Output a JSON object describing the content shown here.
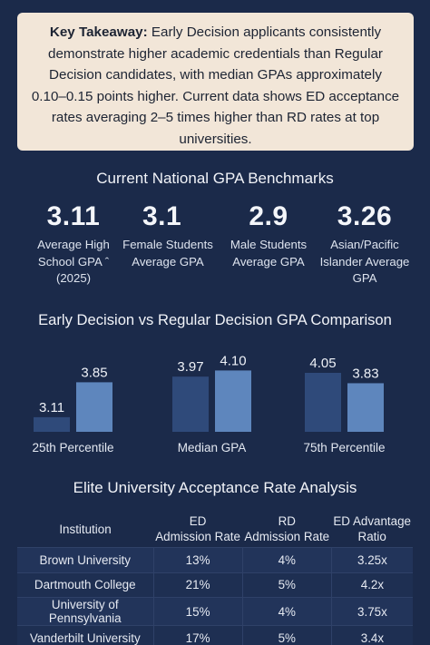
{
  "takeaway": {
    "label": "Key Takeaway:",
    "text": "Early Decision applicants consistently demonstrate higher academic credentials than Regular Decision candidates, with median GPAs approximately 0.10–0.15 points higher. Current data shows ED acceptance rates averaging 2–5 times higher than RD rates at top universities."
  },
  "benchmarks": {
    "title": "Current National GPA Benchmarks",
    "stats": [
      {
        "value": "3.11",
        "label": "Average High School GPA ˆ (2025)"
      },
      {
        "value": "3.1",
        "label": "Female Students Average GPA"
      },
      {
        "value": "2.9",
        "label": "Male Students Average GPA"
      },
      {
        "value": "3.26",
        "label": "Asian/Pacific Islander Average GPA"
      }
    ]
  },
  "comparison": {
    "title": "Early Decision vs Regular Decision GPA Comparison"
  },
  "chart_data": {
    "type": "bar",
    "title": "Early Decision vs Regular Decision GPA Comparison",
    "categories": [
      "25th Percentile",
      "Median GPA",
      "75th Percentile"
    ],
    "series": [
      {
        "values": [
          3.11,
          3.97,
          4.05
        ]
      },
      {
        "values": [
          3.85,
          4.1,
          3.83
        ]
      }
    ],
    "colors": [
      "#2f4a7a",
      "#5e86bd"
    ],
    "value_labels": [
      [
        "3.11",
        "3.97",
        "4.05"
      ],
      [
        "3.85",
        "4.10",
        "3.83"
      ]
    ]
  },
  "acceptance": {
    "title": "Elite University Acceptance Rate Analysis",
    "headers": {
      "institution": "Institution",
      "ed1": "ED",
      "ed2": "Admission Rate",
      "rd1": "RD",
      "rd2": "Admission Rate",
      "adv1": "ED Advantage",
      "adv2": "Ratio"
    },
    "rows": [
      {
        "institution": "Brown University",
        "ed": "13%",
        "rd": "4%",
        "ratio": "3.25x"
      },
      {
        "institution": "Dartmouth College",
        "ed": "21%",
        "rd": "5%",
        "ratio": "4.2x"
      },
      {
        "institution": "University of Pennsylvania",
        "ed": "15%",
        "rd": "4%",
        "ratio": "3.75x"
      },
      {
        "institution": "Vanderbilt University",
        "ed": "17%",
        "rd": "5%",
        "ratio": "3.4x"
      }
    ]
  }
}
